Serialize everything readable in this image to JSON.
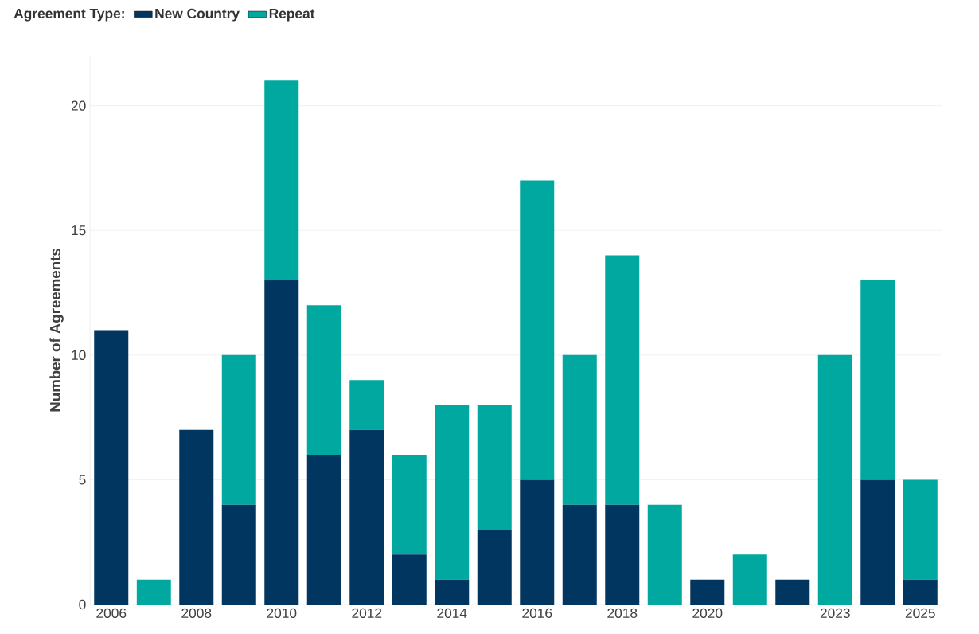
{
  "chart_data": {
    "type": "bar",
    "stacked": true,
    "legend_title": "Agreement Type:",
    "ylabel": "Number of Agreements",
    "categories": [
      "2006",
      null,
      "2008",
      null,
      "2010",
      null,
      "2012",
      null,
      "2014",
      null,
      "2016",
      null,
      "2018",
      null,
      "2020",
      null,
      null,
      "2023",
      null,
      "2025"
    ],
    "series": [
      {
        "name": "New Country",
        "color": "#003660",
        "values": [
          11,
          0,
          7,
          4,
          13,
          6,
          7,
          2,
          1,
          3,
          5,
          4,
          4,
          0,
          1,
          0,
          1,
          0,
          5,
          1
        ]
      },
      {
        "name": "Repeat",
        "color": "#00a8a0",
        "values": [
          0,
          1,
          0,
          6,
          8,
          6,
          2,
          4,
          7,
          5,
          12,
          6,
          10,
          4,
          0,
          2,
          0,
          10,
          8,
          4
        ]
      }
    ],
    "ylim": [
      0,
      22
    ],
    "yticks": [
      0,
      5,
      10,
      15,
      20
    ],
    "grid": "y",
    "legend": "top left"
  }
}
